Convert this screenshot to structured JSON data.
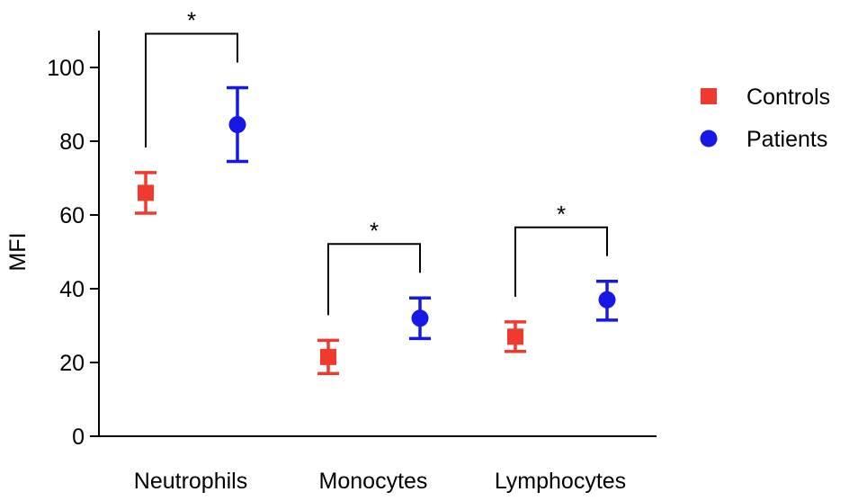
{
  "chart_data": {
    "type": "scatter",
    "ylabel": "MFI",
    "xlabel": "",
    "ylim": [
      0,
      110
    ],
    "yticks": [
      0,
      20,
      40,
      60,
      80,
      100
    ],
    "categories": [
      "Neutrophils",
      "Monocytes",
      "Lymphocytes"
    ],
    "series": [
      {
        "name": "Controls",
        "marker": "square",
        "color": "#f03a2e",
        "values": [
          66,
          21.5,
          27
        ],
        "error_low": [
          60.5,
          17,
          23
        ],
        "error_high": [
          71.5,
          26,
          31
        ]
      },
      {
        "name": "Patients",
        "marker": "circle",
        "color": "#1818e6",
        "values": [
          84.5,
          32,
          37
        ],
        "error_low": [
          74.5,
          26.5,
          31.5
        ],
        "error_high": [
          94.5,
          37.5,
          42
        ]
      }
    ],
    "annotations": [
      {
        "category": "Neutrophils",
        "text": "*"
      },
      {
        "category": "Monocytes",
        "text": "*"
      },
      {
        "category": "Lymphocytes",
        "text": "*"
      }
    ],
    "legend_position": "top-right",
    "grid": false
  }
}
